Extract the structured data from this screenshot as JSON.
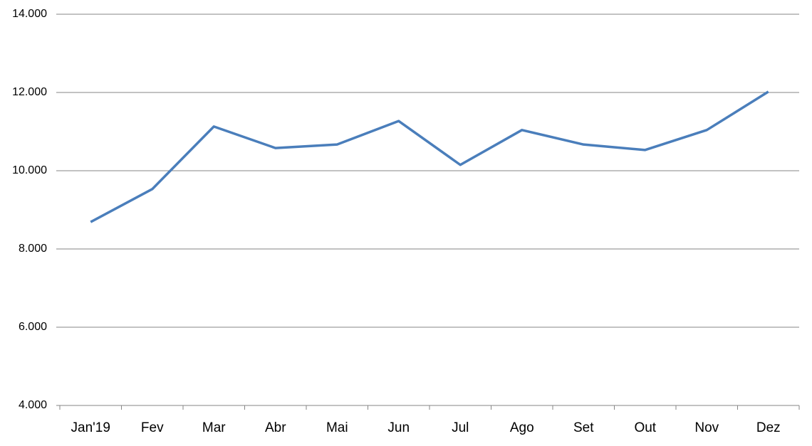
{
  "chart_data": {
    "type": "line",
    "categories": [
      "Jan'19",
      "Fev",
      "Mar",
      "Abr",
      "Mai",
      "Jun",
      "Jul",
      "Ago",
      "Set",
      "Out",
      "Nov",
      "Dez"
    ],
    "series": [
      {
        "color": "#4a7ebb",
        "values": [
          8690,
          9530,
          11130,
          10580,
          10670,
          11270,
          10150,
          11040,
          10670,
          10530,
          11040,
          12020
        ]
      }
    ],
    "ylim": [
      4000,
      14000
    ],
    "yticks": [
      {
        "value": 4000,
        "label": "4.000"
      },
      {
        "value": 6000,
        "label": "6.000"
      },
      {
        "value": 8000,
        "label": "8.000"
      },
      {
        "value": 10000,
        "label": "10.000"
      },
      {
        "value": 12000,
        "label": "12.000"
      },
      {
        "value": 14000,
        "label": "14.000"
      }
    ],
    "grid": true
  }
}
